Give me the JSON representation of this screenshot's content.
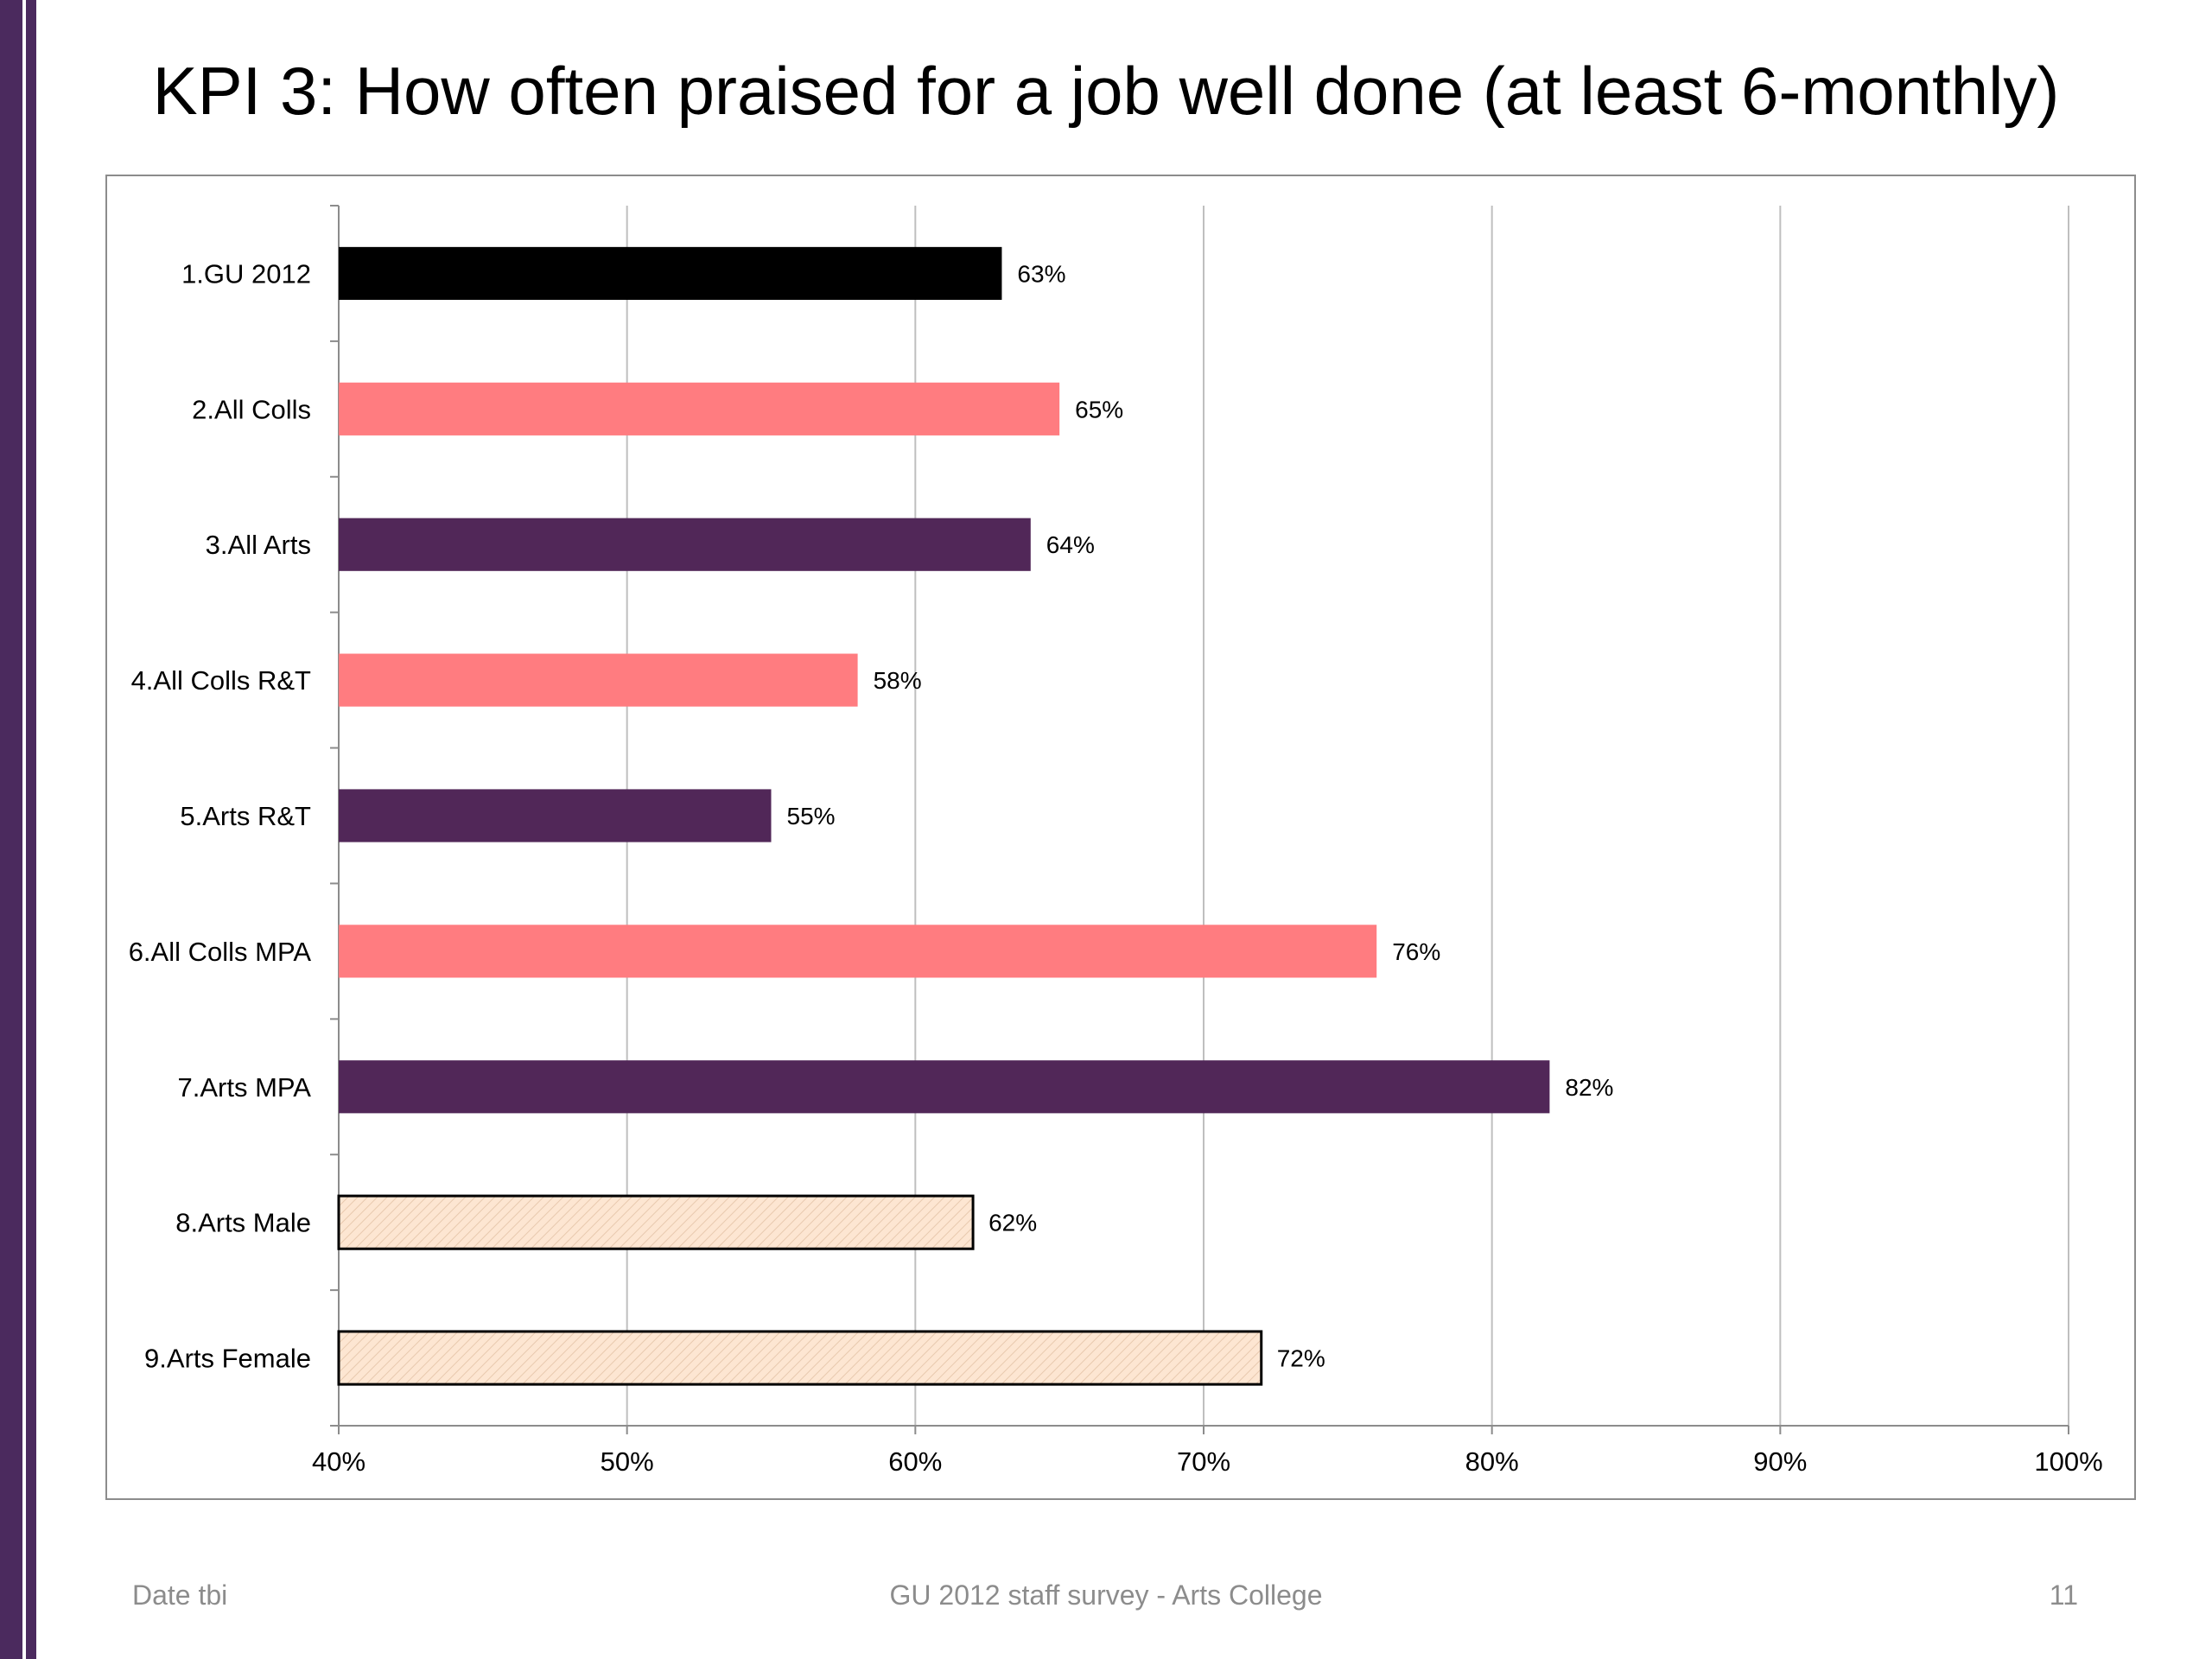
{
  "slide": {
    "title": "KPI 3: How often praised for a job well done (at least 6-monthly)",
    "footer_left": "Date tbi",
    "footer_center": "GU 2012 staff survey -  Arts College",
    "footer_right": "11",
    "rail_color": "#4b2a5e"
  },
  "chart_data": {
    "type": "bar",
    "orientation": "horizontal",
    "title": "",
    "xlabel": "",
    "ylabel": "",
    "categories": [
      "1.GU 2012",
      "2.All Colls",
      "3.All Arts",
      "4.All Colls R&T",
      "5.Arts R&T",
      "6.All Colls MPA",
      "7.Arts MPA",
      "8.Arts Male",
      "9.Arts Female"
    ],
    "values": [
      63,
      65,
      64,
      58,
      55,
      76,
      82,
      62,
      72
    ],
    "data_labels": [
      "63%",
      "65%",
      "64%",
      "58%",
      "55%",
      "76%",
      "82%",
      "62%",
      "72%"
    ],
    "bar_colors": [
      "#000000",
      "#ff7c80",
      "#512758",
      "#ff7c80",
      "#512758",
      "#ff7c80",
      "#512758",
      "pattern",
      "pattern"
    ],
    "pattern_fill": "#fde6d2",
    "xlim": [
      40,
      100
    ],
    "xticks": [
      40,
      50,
      60,
      70,
      80,
      90,
      100
    ],
    "xtick_labels": [
      "40%",
      "50%",
      "60%",
      "70%",
      "80%",
      "90%",
      "100%"
    ],
    "grid": true,
    "legend": "none"
  }
}
